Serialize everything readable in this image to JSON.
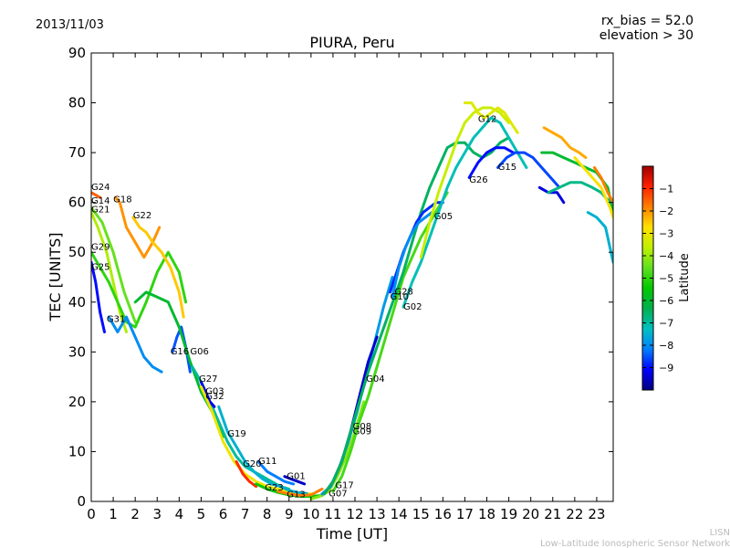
{
  "header": {
    "date": "2013/11/03",
    "rx_bias": "rx_bias = 52.0",
    "elevation": "elevation > 30"
  },
  "footer": {
    "line1": "LISN",
    "line2": "Low-Latitude Ionospheric Sensor Network"
  },
  "colors": {
    "stops": [
      "#00007f",
      "#0000ff",
      "#0080ff",
      "#00c0c0",
      "#00b050",
      "#00c800",
      "#60e020",
      "#c0f000",
      "#ffe000",
      "#ff8000",
      "#ff2000",
      "#a00000"
    ]
  },
  "chart_data": {
    "type": "line",
    "title": "PIURA, Peru",
    "xlabel": "Time [UT]",
    "ylabel": "TEC [UNITS]",
    "xlim": [
      0,
      23.75
    ],
    "ylim": [
      0,
      90
    ],
    "xticks": [
      0,
      1,
      2,
      3,
      4,
      5,
      6,
      7,
      8,
      9,
      10,
      11,
      12,
      13,
      14,
      15,
      16,
      17,
      18,
      19,
      20,
      21,
      22,
      23
    ],
    "yticks": [
      0,
      10,
      20,
      30,
      40,
      50,
      60,
      70,
      80,
      90
    ],
    "colorbar": {
      "label": "Latitude",
      "range": [
        -10,
        0
      ],
      "ticks": [
        -1,
        -2,
        -3,
        -4,
        -5,
        -6,
        -7,
        -8,
        -9
      ]
    },
    "series": [
      {
        "name": "G24",
        "lat": -1.5,
        "x": [
          0.0,
          0.4
        ],
        "y": [
          62,
          61
        ]
      },
      {
        "name": "G14",
        "lat": -4.5,
        "x": [
          0.0,
          0.5,
          1.0,
          1.5,
          2.0
        ],
        "y": [
          59,
          56,
          50,
          42,
          36
        ]
      },
      {
        "name": "G21",
        "lat": -3.8,
        "x": [
          0.0,
          0.3,
          0.7,
          1.0,
          1.3,
          1.6
        ],
        "y": [
          58,
          55,
          50,
          44,
          38,
          34
        ]
      },
      {
        "name": "G29",
        "lat": -5.0,
        "x": [
          0.0,
          0.4,
          0.8,
          1.2,
          1.6,
          2.0,
          2.5,
          3.0,
          3.5,
          4.0,
          4.3
        ],
        "y": [
          50,
          47,
          44,
          40,
          36,
          35,
          40,
          46,
          50,
          46,
          40
        ]
      },
      {
        "name": "G25",
        "lat": -9.0,
        "x": [
          0.0,
          0.2,
          0.4,
          0.6
        ],
        "y": [
          48,
          44,
          38,
          34
        ]
      },
      {
        "name": "G31",
        "lat": -8.0,
        "x": [
          0.8,
          1.2,
          1.6,
          2.0,
          2.4,
          2.8,
          3.2
        ],
        "y": [
          37,
          34,
          37,
          33,
          29,
          27,
          26
        ]
      },
      {
        "name": "G18",
        "lat": -2.0,
        "x": [
          1.1,
          1.3,
          1.6,
          2.0,
          2.4,
          2.8,
          3.1
        ],
        "y": [
          61,
          60,
          55,
          52,
          49,
          52,
          55
        ]
      },
      {
        "name": "G22",
        "lat": -2.5,
        "x": [
          1.9,
          2.2,
          2.5,
          2.8,
          3.2,
          3.6,
          4.0,
          4.2
        ],
        "y": [
          57,
          55,
          54,
          52,
          50,
          47,
          42,
          37
        ]
      },
      {
        "name": "G16",
        "lat": -8.5,
        "x": [
          3.7,
          3.9,
          4.1,
          4.3,
          4.5
        ],
        "y": [
          30,
          33,
          35,
          31,
          26
        ]
      },
      {
        "name": "G06",
        "lat": -6.0,
        "x": [
          2.0,
          2.5,
          3.0,
          3.5,
          4.0,
          4.5,
          5.0,
          5.5,
          6.0
        ],
        "y": [
          40,
          42,
          41,
          40,
          35,
          28,
          22,
          18,
          13
        ]
      },
      {
        "name": "G27",
        "lat": -7.0,
        "x": [
          4.6,
          5.0,
          5.4,
          5.8,
          6.2,
          6.6,
          7.0,
          7.4,
          7.8,
          8.2,
          8.6,
          9.0
        ],
        "y": [
          27,
          24,
          20,
          16,
          12,
          9,
          7,
          6,
          5,
          4,
          3,
          2.5
        ]
      },
      {
        "name": "G03",
        "lat": -9.2,
        "x": [
          5.0,
          5.2,
          5.4,
          5.6
        ],
        "y": [
          24,
          22,
          20,
          19
        ]
      },
      {
        "name": "G32",
        "lat": -3.0,
        "x": [
          5.0,
          5.5,
          6.0,
          6.5,
          7.0,
          7.5,
          8.0,
          8.5,
          9.0,
          9.5,
          10.0
        ],
        "y": [
          23,
          18,
          12,
          8,
          5.5,
          4,
          3,
          2.5,
          2,
          1.5,
          1.5
        ]
      },
      {
        "name": "G19",
        "lat": -7.5,
        "x": [
          5.8,
          6.2,
          6.6,
          7.0,
          7.4,
          7.8,
          8.2,
          8.6,
          9.0,
          9.4,
          9.8
        ],
        "y": [
          19,
          14,
          11,
          8,
          6,
          4.5,
          3.5,
          3,
          2.2,
          1.8,
          1.6
        ]
      },
      {
        "name": "G20",
        "lat": -1.0,
        "x": [
          6.6,
          6.9,
          7.2,
          7.5
        ],
        "y": [
          8,
          5.5,
          4,
          3
        ]
      },
      {
        "name": "G11",
        "lat": -8.2,
        "x": [
          7.6,
          8.0,
          8.4,
          8.8,
          9.2
        ],
        "y": [
          8,
          6,
          5,
          4,
          3.5
        ]
      },
      {
        "name": "G01",
        "lat": -9.5,
        "x": [
          8.8,
          9.1,
          9.4,
          9.7
        ],
        "y": [
          5,
          4.5,
          4,
          3.5
        ]
      },
      {
        "name": "G23",
        "lat": -5.5,
        "x": [
          7.5,
          8.0,
          8.5,
          9.0,
          9.5,
          10.0,
          10.5
        ],
        "y": [
          3.5,
          2.5,
          1.8,
          1.3,
          1.0,
          1.0,
          1.2
        ]
      },
      {
        "name": "G13",
        "lat": -1.8,
        "x": [
          8.5,
          9.0,
          9.5,
          10.0,
          10.5
        ],
        "y": [
          2,
          1.5,
          1.2,
          1.3,
          2.5
        ]
      },
      {
        "name": "G07",
        "lat": -4.2,
        "x": [
          10.0,
          10.4,
          10.8,
          11.2,
          11.6,
          12.0,
          12.4
        ],
        "y": [
          0.5,
          1,
          2,
          5,
          9,
          14,
          20
        ]
      },
      {
        "name": "G17",
        "lat": -7.8,
        "x": [
          10.5,
          10.9,
          11.3,
          11.7,
          12.1,
          12.5,
          12.9,
          13.3,
          13.7
        ],
        "y": [
          1.5,
          3,
          7,
          12,
          18,
          25,
          32,
          39,
          45
        ]
      },
      {
        "name": "G09",
        "lat": -9.4,
        "x": [
          10.6,
          11.0,
          11.4,
          11.8,
          12.2,
          12.6,
          13.0
        ],
        "y": [
          1.5,
          4,
          8,
          14,
          21,
          28,
          33
        ]
      },
      {
        "name": "G08",
        "lat": -4.8,
        "x": [
          11.0,
          11.4,
          11.8,
          12.2,
          12.6,
          13.0,
          13.4,
          13.8,
          14.2,
          14.6,
          15.0,
          15.4,
          15.8,
          16.2
        ],
        "y": [
          2,
          5,
          10,
          16,
          21,
          27,
          33,
          39,
          45,
          49,
          53,
          56,
          59,
          62
        ]
      },
      {
        "name": "G04",
        "lat": -6.5,
        "x": [
          10.6,
          11.0,
          11.4,
          11.8,
          12.2,
          12.6,
          13.0,
          13.4,
          13.8,
          14.2,
          14.6,
          15.0,
          15.4,
          15.8,
          16.2,
          16.6,
          17.0,
          17.4,
          17.8,
          18.2,
          18.6,
          19.0
        ],
        "y": [
          1.5,
          4,
          8,
          14,
          20,
          26,
          31,
          36,
          41,
          46,
          52,
          58,
          63,
          67,
          71,
          72,
          72,
          70,
          69,
          70,
          72,
          73
        ]
      },
      {
        "name": "G28",
        "lat": -8.8,
        "x": [
          13.6,
          13.9,
          14.2,
          14.5,
          14.8,
          15.1,
          15.4,
          15.7,
          16.0
        ],
        "y": [
          42,
          46,
          50,
          53,
          56,
          58,
          59,
          60,
          60
        ]
      },
      {
        "name": "G10",
        "lat": -8.0,
        "x": [
          13.7,
          14.0,
          14.3,
          14.6,
          14.9,
          15.2,
          15.5
        ],
        "y": [
          41,
          47,
          51,
          54,
          56,
          57,
          58
        ]
      },
      {
        "name": "G02",
        "lat": -7.2,
        "x": [
          14.2,
          14.6,
          15.0,
          15.4,
          15.8,
          16.2,
          16.6,
          17.0,
          17.4,
          17.8,
          18.2,
          18.6,
          19.0,
          19.4,
          19.8
        ],
        "y": [
          39,
          44,
          48,
          53,
          58,
          63,
          67,
          70,
          73,
          75,
          77,
          76,
          73,
          70,
          67
        ]
      },
      {
        "name": "G05",
        "lat": -3.5,
        "x": [
          15.0,
          15.4,
          15.8,
          16.2,
          16.6,
          17.0,
          17.4,
          17.8,
          18.2,
          18.6,
          19.0
        ],
        "y": [
          49,
          56,
          62,
          67,
          72,
          76,
          78,
          79,
          79,
          78,
          76
        ]
      },
      {
        "name": "G12",
        "lat": -3.2,
        "x": [
          17.0,
          17.3,
          17.6,
          17.9,
          18.2,
          18.5,
          18.8,
          19.1,
          19.4
        ],
        "y": [
          80,
          80,
          78,
          77,
          78,
          79,
          78,
          76,
          74
        ]
      },
      {
        "name": "G26",
        "lat": -9.0,
        "x": [
          17.2,
          17.6,
          18.0,
          18.4,
          18.8,
          19.2
        ],
        "y": [
          65,
          68,
          70,
          71,
          71,
          70
        ]
      },
      {
        "name": "G15",
        "lat": -8.6,
        "x": [
          18.5,
          18.9,
          19.3,
          19.7,
          20.1,
          20.5,
          20.9,
          21.3
        ],
        "y": [
          67,
          69,
          70,
          70,
          69,
          67,
          65,
          63
        ]
      },
      {
        "name": "",
        "lat": -9.3,
        "x": [
          20.4,
          20.8,
          21.2,
          21.5
        ],
        "y": [
          63,
          62,
          62,
          60
        ]
      },
      {
        "name": "",
        "lat": -2.2,
        "x": [
          20.6,
          21.0,
          21.4,
          21.8,
          22.2,
          22.5
        ],
        "y": [
          75,
          74,
          73,
          71,
          70,
          69
        ]
      },
      {
        "name": "",
        "lat": -6.0,
        "x": [
          20.5,
          21.0,
          21.5,
          22.0,
          22.5,
          23.0,
          23.5,
          23.75
        ],
        "y": [
          70,
          70,
          69,
          68,
          67,
          66,
          63,
          58
        ]
      },
      {
        "name": "",
        "lat": -6.8,
        "x": [
          20.8,
          21.3,
          21.8,
          22.3,
          22.8,
          23.2,
          23.6
        ],
        "y": [
          62,
          63,
          64,
          64,
          63,
          62,
          60
        ]
      },
      {
        "name": "",
        "lat": -2.8,
        "x": [
          22.0,
          22.4,
          22.8,
          23.2,
          23.6,
          23.75
        ],
        "y": [
          69,
          67,
          65,
          63,
          59,
          57
        ]
      },
      {
        "name": "",
        "lat": -1.8,
        "x": [
          22.9,
          23.2,
          23.5,
          23.75
        ],
        "y": [
          67,
          65,
          62,
          60
        ]
      },
      {
        "name": "",
        "lat": -7.5,
        "x": [
          22.6,
          23.0,
          23.4,
          23.75
        ],
        "y": [
          58,
          57,
          55,
          48
        ]
      }
    ],
    "labels": [
      {
        "text": "G24",
        "x": 0.0,
        "y": 62.5
      },
      {
        "text": "G14",
        "x": 0.0,
        "y": 59.8
      },
      {
        "text": "G21",
        "x": 0.0,
        "y": 58.0
      },
      {
        "text": "G18",
        "x": 1.0,
        "y": 60.0
      },
      {
        "text": "G22",
        "x": 1.9,
        "y": 56.8
      },
      {
        "text": "G29",
        "x": 0.0,
        "y": 50.5
      },
      {
        "text": "G25",
        "x": 0.0,
        "y": 46.5
      },
      {
        "text": "G31",
        "x": 0.7,
        "y": 36.0
      },
      {
        "text": "G16",
        "x": 3.6,
        "y": 29.5
      },
      {
        "text": "G06",
        "x": 4.5,
        "y": 29.5
      },
      {
        "text": "G27",
        "x": 4.9,
        "y": 24.0
      },
      {
        "text": "G03",
        "x": 5.2,
        "y": 21.5
      },
      {
        "text": "G32",
        "x": 5.2,
        "y": 20.5
      },
      {
        "text": "G19",
        "x": 6.2,
        "y": 13.0
      },
      {
        "text": "G20",
        "x": 6.9,
        "y": 7.0
      },
      {
        "text": "G11",
        "x": 7.6,
        "y": 7.5
      },
      {
        "text": "G01",
        "x": 8.9,
        "y": 4.5
      },
      {
        "text": "G23",
        "x": 7.9,
        "y": 2.2
      },
      {
        "text": "G13",
        "x": 8.9,
        "y": 0.8
      },
      {
        "text": "G17",
        "x": 11.1,
        "y": 2.7
      },
      {
        "text": "G07",
        "x": 10.8,
        "y": 1.0
      },
      {
        "text": "G08",
        "x": 11.9,
        "y": 14.5
      },
      {
        "text": "G09",
        "x": 11.9,
        "y": 13.5
      },
      {
        "text": "G04",
        "x": 12.5,
        "y": 24.0
      },
      {
        "text": "G28",
        "x": 13.8,
        "y": 41.5
      },
      {
        "text": "G10",
        "x": 13.6,
        "y": 40.5
      },
      {
        "text": "G02",
        "x": 14.2,
        "y": 38.5
      },
      {
        "text": "G05",
        "x": 15.6,
        "y": 56.6
      },
      {
        "text": "G12",
        "x": 17.6,
        "y": 76.2
      },
      {
        "text": "G26",
        "x": 17.2,
        "y": 64.0
      },
      {
        "text": "G15",
        "x": 18.5,
        "y": 66.5
      }
    ]
  }
}
